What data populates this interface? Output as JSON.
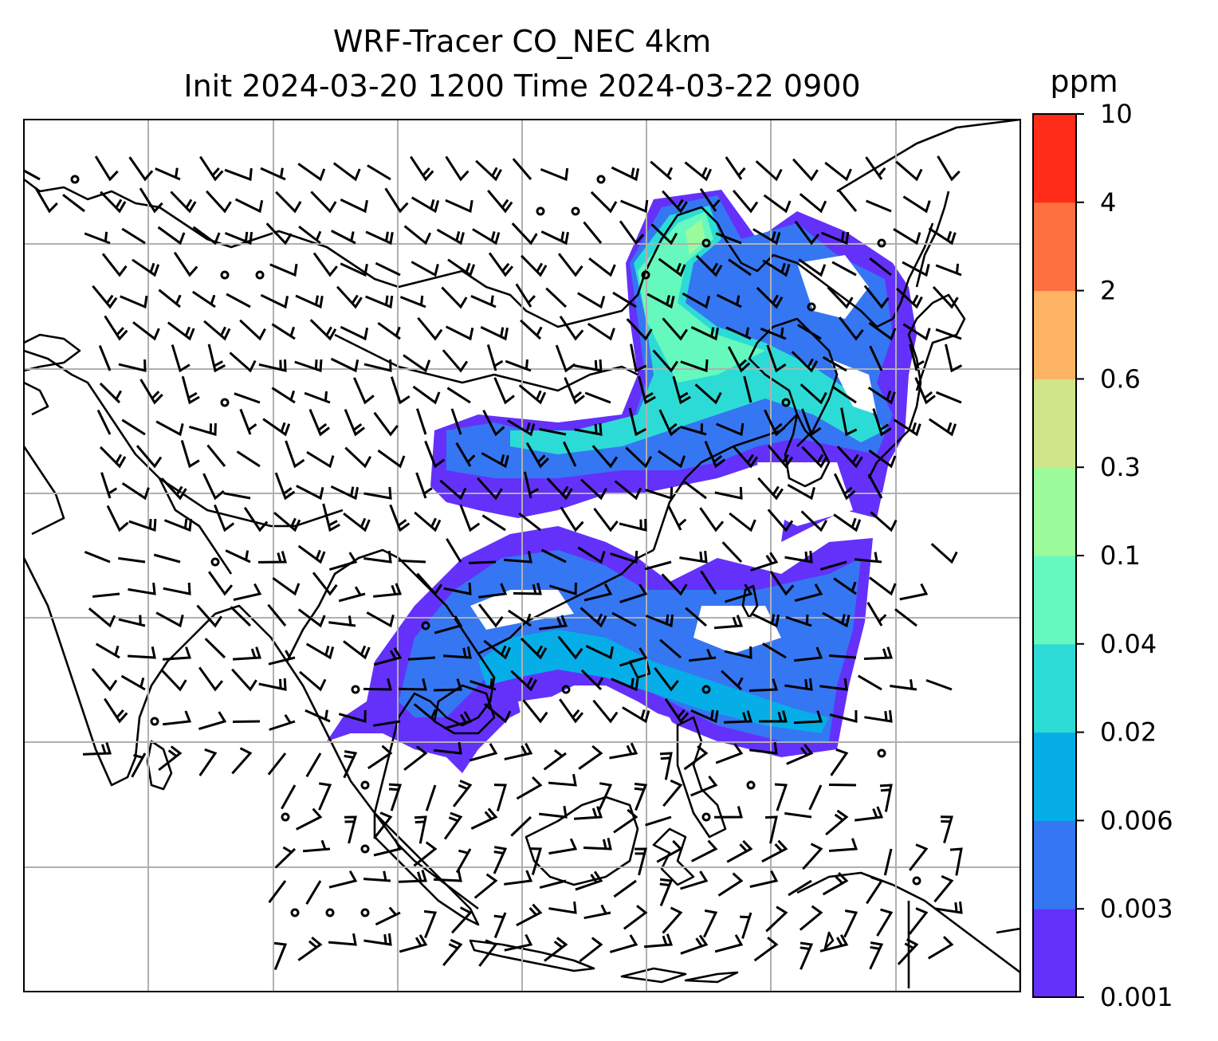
{
  "title": {
    "line1": "WRF-Tracer CO_NEC 4km",
    "line2": "Init 2024-03-20 1200 Time 2024-03-22 0900"
  },
  "colorbar": {
    "unit": "ppm",
    "levels": [
      {
        "label": "0.001",
        "color": "#6431fa"
      },
      {
        "label": "0.003",
        "color": "#3576f2"
      },
      {
        "label": "0.006",
        "color": "#06aee8"
      },
      {
        "label": "0.02",
        "color": "#2ddbd6"
      },
      {
        "label": "0.04",
        "color": "#66f9bd"
      },
      {
        "label": "0.1",
        "color": "#9bfb9a"
      },
      {
        "label": "0.3",
        "color": "#d0e48a"
      },
      {
        "label": "0.6",
        "color": "#fcb362"
      },
      {
        "label": "2",
        "color": "#fe7040"
      },
      {
        "label": "4",
        "color": "#fe2c18"
      },
      {
        "label": "10",
        "color": ""
      }
    ]
  },
  "map": {
    "gridlines": true,
    "wind_barbs": true,
    "coastlines": true
  }
}
